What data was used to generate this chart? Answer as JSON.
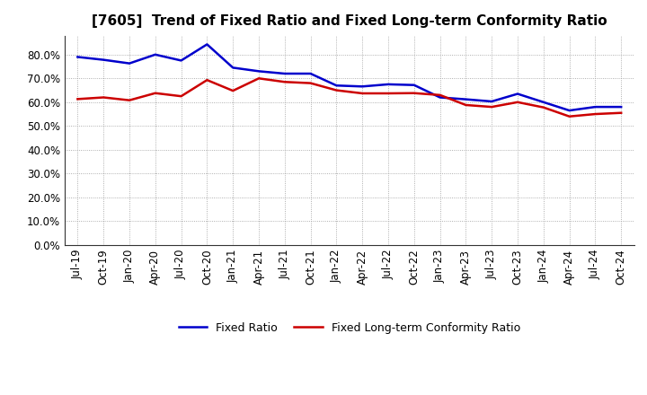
{
  "title": "[7605]  Trend of Fixed Ratio and Fixed Long-term Conformity Ratio",
  "x_labels": [
    "Jul-19",
    "Oct-19",
    "Jan-20",
    "Apr-20",
    "Jul-20",
    "Oct-20",
    "Jan-21",
    "Apr-21",
    "Jul-21",
    "Oct-21",
    "Jan-22",
    "Apr-22",
    "Jul-22",
    "Oct-22",
    "Jan-23",
    "Apr-23",
    "Jul-23",
    "Oct-23",
    "Jan-24",
    "Apr-24",
    "Jul-24",
    "Oct-24"
  ],
  "fixed_ratio": [
    0.79,
    0.778,
    0.763,
    0.8,
    0.775,
    0.843,
    0.745,
    0.73,
    0.72,
    0.72,
    0.67,
    0.666,
    0.675,
    0.672,
    0.62,
    0.612,
    0.603,
    0.635,
    0.6,
    0.565,
    0.58,
    0.58
  ],
  "fixed_lt_ratio": [
    0.613,
    0.62,
    0.608,
    0.638,
    0.625,
    0.693,
    0.648,
    0.7,
    0.685,
    0.68,
    0.65,
    0.637,
    0.637,
    0.638,
    0.63,
    0.588,
    0.58,
    0.6,
    0.578,
    0.54,
    0.55,
    0.555
  ],
  "fixed_ratio_color": "#0000cc",
  "fixed_lt_ratio_color": "#cc0000",
  "background_color": "#ffffff",
  "grid_color": "#999999",
  "ylim": [
    0.0,
    0.88
  ],
  "yticks": [
    0.0,
    0.1,
    0.2,
    0.3,
    0.4,
    0.5,
    0.6,
    0.7,
    0.8
  ],
  "legend_fixed_ratio": "Fixed Ratio",
  "legend_fixed_lt_ratio": "Fixed Long-term Conformity Ratio",
  "title_fontsize": 11,
  "tick_fontsize": 8.5,
  "legend_fontsize": 9,
  "linewidth": 1.8
}
